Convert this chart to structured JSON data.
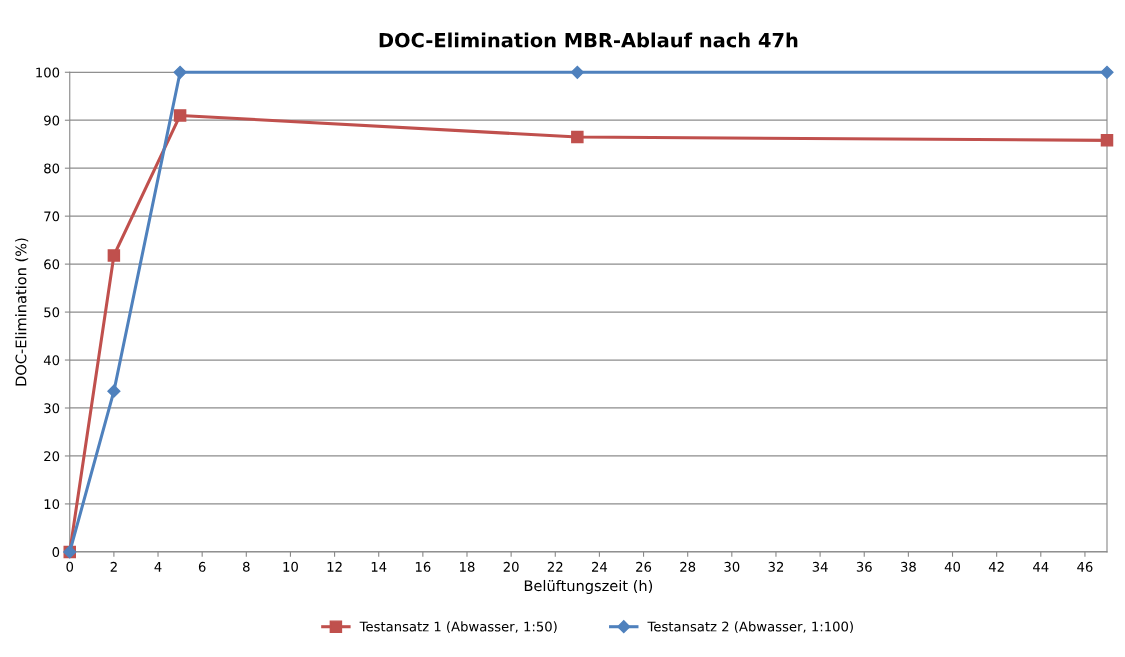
{
  "chart_data": {
    "type": "line",
    "title": "DOC-Elimination MBR-Ablauf nach 47h",
    "xlabel": "Belüftungszeit (h)",
    "ylabel": "DOC-Elimination (%)",
    "series": [
      {
        "name": "Testansatz 1 (Abwasser, 1:50)",
        "color": "#c0504d",
        "marker": "square",
        "x": [
          0,
          2,
          5,
          23,
          47
        ],
        "values": [
          0,
          61.8,
          91,
          86.5,
          85.8
        ]
      },
      {
        "name": "Testansatz 2 (Abwasser, 1:100)",
        "color": "#4f81bd",
        "marker": "diamond",
        "x": [
          0,
          2,
          5,
          23,
          47
        ],
        "values": [
          0,
          33.5,
          100,
          100,
          100
        ]
      }
    ],
    "xlim": [
      0,
      47
    ],
    "xticks": [
      0,
      2,
      4,
      6,
      8,
      10,
      12,
      14,
      16,
      18,
      20,
      22,
      24,
      26,
      28,
      30,
      32,
      34,
      36,
      38,
      40,
      42,
      44,
      46
    ],
    "ylim": [
      0,
      100
    ],
    "yticks": [
      0,
      10,
      20,
      30,
      40,
      50,
      60,
      70,
      80,
      90,
      100
    ],
    "grid": "y",
    "legend": "bottom",
    "line_style": "solid"
  }
}
